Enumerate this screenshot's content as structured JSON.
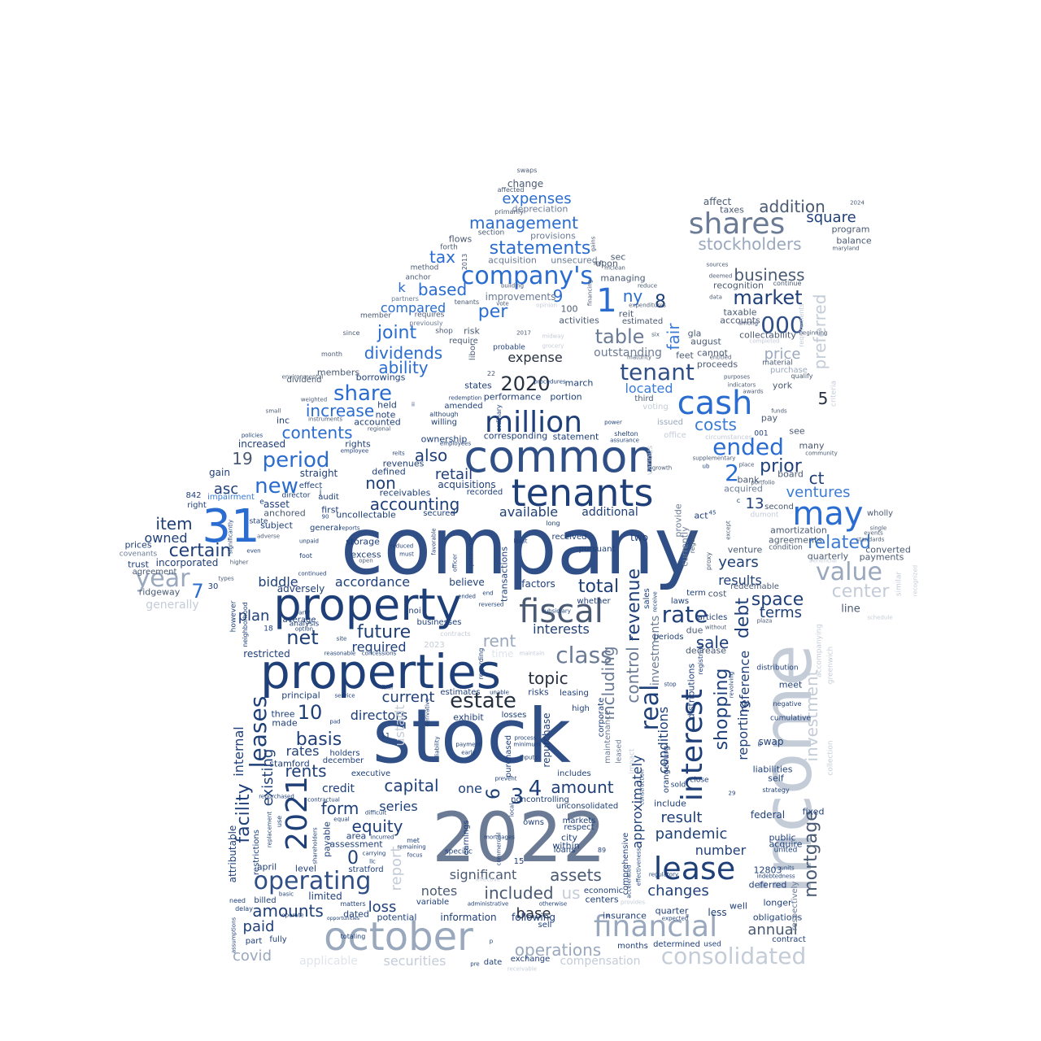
{
  "words": {
    "company": "company",
    "stock": "stock",
    "income": "income",
    "y2022": "2022",
    "properties": "properties",
    "property": "property",
    "common": "common",
    "tenants": "tenants",
    "october": "october",
    "fiscal": "fiscal",
    "financial": "financial",
    "consolidated": "consolidated",
    "n31": "31",
    "may": "may",
    "cash": "cash",
    "million": "million",
    "shares": "shares",
    "companys": "company's",
    "lease": "lease",
    "operating": "operating",
    "n2021": "2021",
    "interest": "interest",
    "real": "real",
    "value": "value",
    "tenant": "tenant",
    "ended": "ended",
    "estate": "estate",
    "class": "class",
    "year": "year",
    "statements": "statements",
    "management": "management",
    "expenses": "expenses",
    "stockholders": "stockholders",
    "addition": "addition",
    "market": "market",
    "n000": "000",
    "business": "business",
    "share": "share",
    "n2020": "2020",
    "increase": "increase",
    "contents": "contents",
    "period": "period",
    "new": "new",
    "also": "also",
    "accounting": "accounting",
    "leases": "leases",
    "dividends": "dividends",
    "joint": "joint",
    "ability": "ability",
    "table": "table",
    "rate": "rate",
    "debt": "debt",
    "future": "future",
    "net": "net",
    "total": "total",
    "revenue": "revenue",
    "shopping": "shopping",
    "investment": "investment",
    "mortgage": "mortgage",
    "preferred": "preferred",
    "center": "center",
    "related": "related",
    "ventures": "ventures",
    "prior": "prior",
    "ct": "ct",
    "costs": "costs",
    "located": "located",
    "fair": "fair",
    "capital": "capital",
    "equity": "equity",
    "form": "form",
    "rents": "rents",
    "basis": "basis",
    "amount": "amount",
    "assets": "assets",
    "included": "included",
    "operations": "operations",
    "significant": "significant",
    "topic": "topic",
    "current": "current",
    "directors": "directors",
    "certain": "certain",
    "item": "item",
    "asc": "asc",
    "available": "available",
    "retail": "retail",
    "non": "non",
    "changes": "changes",
    "pandemic": "pandemic",
    "result": "result",
    "number": "number",
    "sale": "sale",
    "space": "space",
    "results": "results",
    "terms": "terms",
    "years": "years",
    "annual": "annual",
    "amounts": "amounts",
    "paid": "paid",
    "covid": "covid",
    "loss": "loss",
    "notes": "notes",
    "base": "base",
    "facility": "facility",
    "existing": "existing",
    "internal": "internal",
    "required": "required",
    "accordance": "accordance",
    "biddle": "biddle",
    "plan": "plan",
    "rent": "rent",
    "n1": "1",
    "n4": "4",
    "n3": "3",
    "n6": "6",
    "n7": "7",
    "n10": "10",
    "n19": "19",
    "n0": "0",
    "n2": "2",
    "n5": "5",
    "n8": "8",
    "n9": "9",
    "n13": "13",
    "ny": "ny",
    "per": "per",
    "based": "based",
    "tax": "tax",
    "compared": "compared",
    "k": "k",
    "price": "price",
    "square": "square",
    "outstanding": "outstanding",
    "expense": "expense",
    "including": "including",
    "control": "control",
    "conditions": "conditions",
    "investments": "investments",
    "approximately": "approximately",
    "reporting": "reporting",
    "reference": "reference",
    "report": "report",
    "us": "us",
    "securities": "securities",
    "applicable": "applicable",
    "compensation": "compensation",
    "one": "one",
    "credit": "credit",
    "series": "series",
    "owned": "owned",
    "generally": "generally",
    "incorporated": "incorporated",
    "adversely": "adversely",
    "change": "change",
    "depreciation": "depreciation",
    "provisions": "provisions",
    "acquisition": "acquisition",
    "unsecured": "unsecured",
    "improvements": "improvements",
    "activities": "activities",
    "upon": "upon",
    "sec": "sec",
    "managing": "managing",
    "reit": "reit",
    "estimated": "estimated",
    "affect": "affect",
    "taxes": "taxes",
    "program": "program",
    "balance": "balance",
    "recognition": "recognition",
    "taxable": "taxable",
    "accounts": "accounts",
    "collectability": "collectability",
    "gla": "gla",
    "august": "august",
    "feet": "feet",
    "cannot": "cannot",
    "proceeds": "proceeds",
    "purchase": "purchase",
    "york": "york",
    "pay": "pay",
    "see": "see",
    "many": "many",
    "board": "board",
    "bank": "bank",
    "acquired": "acquired",
    "second": "second",
    "amortization": "amortization",
    "agreements": "agreements",
    "quarterly": "quarterly",
    "payments": "payments",
    "converted": "converted",
    "wholly": "wholly",
    "line": "line",
    "similar": "similar",
    "venture": "venture",
    "redeemable": "redeemable",
    "cost": "cost",
    "due": "due",
    "decrease": "decrease",
    "ownership": "ownership",
    "statement": "statement",
    "corresponding": "corresponding",
    "performance": "performance",
    "portion": "portion",
    "march": "march",
    "states": "states",
    "amended": "amended",
    "willing": "willing",
    "borrowings": "borrowings",
    "members": "members",
    "dividend": "dividend",
    "held": "held",
    "note": "note",
    "accounted": "accounted",
    "inc": "inc",
    "increased": "increased",
    "rights": "rights",
    "gain": "gain",
    "straight": "straight",
    "effect": "effect",
    "impairment": "impairment",
    "asset": "asset",
    "anchored": "anchored",
    "subject": "subject",
    "trust": "trust",
    "agreement": "agreement",
    "ridgeway": "ridgeway",
    "prices": "prices",
    "covenants": "covenants",
    "revenues": "revenues",
    "defined": "defined",
    "receivables": "receivables",
    "acquisitions": "acquisitions",
    "recorded": "recorded",
    "secured": "secured",
    "uncollectable": "uncollectable",
    "storage": "storage",
    "excess": "excess",
    "received": "received",
    "pursuant": "pursuant",
    "two": "two",
    "factors": "factors",
    "believe": "believe",
    "transactions": "transactions",
    "interests": "interests",
    "whether": "whether",
    "additional": "additional",
    "provide": "provide",
    "currently": "currently",
    "act": "act",
    "laws": "laws",
    "term": "term",
    "sales": "sales",
    "periods": "periods",
    "articles": "articles",
    "adjustment": "adjustment",
    "estimates": "estimates",
    "exhibit": "exhibit",
    "losses": "losses",
    "risks": "risks",
    "leasing": "leasing",
    "repurchase": "repurchase",
    "purchased": "purchased",
    "noncontrolling": "noncontrolling",
    "includes": "includes",
    "unconsolidated": "unconsolidated",
    "high": "high",
    "corporate": "corporate",
    "maintenance": "maintenance",
    "insurance": "insurance",
    "centers": "centers",
    "economic": "economic",
    "comprehensive": "comprehensive",
    "information": "information",
    "following": "following",
    "sell": "sell",
    "exchange": "exchange",
    "date": "date",
    "months": "months",
    "determined": "determined",
    "used": "used",
    "quarter": "quarter",
    "less": "less",
    "well": "well",
    "obligations": "obligations",
    "contract": "contract",
    "longer": "longer",
    "deferred": "deferred",
    "n12803": "12803",
    "public": "public",
    "acquire": "acquire",
    "united": "united",
    "federal": "federal",
    "fixed": "fixed",
    "liabilities": "liabilities",
    "self": "self",
    "strategy": "strategy",
    "swap": "swap",
    "meet": "meet",
    "distribution": "distribution",
    "cumulative": "cumulative",
    "negative": "negative",
    "include": "include",
    "distributions": "distributions",
    "orangeburg": "orangeburg",
    "sold": "sold",
    "close": "close",
    "holders": "holders",
    "december": "december",
    "rates": "rates",
    "stamford": "stamford",
    "executive": "executive",
    "three": "three",
    "made": "made",
    "principal": "principal",
    "ustadt": "ustadt",
    "markets": "markets",
    "respect": "respect",
    "city": "city",
    "within": "within",
    "loans": "loans",
    "owns": "owns",
    "earnings": "earnings",
    "specific": "specific",
    "level": "level",
    "april": "april",
    "stratford": "stratford",
    "payable": "payable",
    "restrictions": "restrictions",
    "area": "area",
    "assessment": "assessment",
    "attributable": "attributable",
    "limited": "limited",
    "dated": "dated",
    "potential": "potential",
    "variable": "variable",
    "billed": "billed",
    "fully": "fully",
    "part": "part",
    "totaling": "totaling",
    "matters": "matters",
    "need": "need",
    "delay": "delay",
    "restricted": "restricted",
    "average": "average",
    "however": "however",
    "analysis": "analysis",
    "neighborhood": "neighborhood",
    "swaps": "swaps",
    "affected": "affected",
    "primarily": "primarily",
    "section": "section",
    "flows": "flows",
    "forth": "forth",
    "method": "method",
    "anchor": "anchor",
    "partners": "partners",
    "requires": "requires",
    "previously": "previously",
    "member": "member",
    "shop": "shop",
    "risk": "risk",
    "require": "require",
    "since": "since",
    "month": "month",
    "audit": "audit",
    "first": "first",
    "general": "general",
    "state": "state",
    "director": "director",
    "right": "right",
    "n842": "842",
    "n30": "30",
    "n100": "100",
    "n2013": "2013",
    "n2017": "2017",
    "n2023": "2023",
    "n2024": "2024",
    "n22": "22",
    "n15": "15",
    "n18": "18",
    "n11": "11",
    "n90": "90",
    "n89": "89",
    "n29": "29",
    "n45": "45",
    "n001": "001",
    "maryland": "maryland",
    "sources": "sources",
    "deemed": "deemed",
    "reduce": "reduce",
    "continue": "continue",
    "data": "data",
    "among": "among",
    "completed": "completed",
    "entitled": "entitled",
    "material": "material",
    "qualify": "qualify",
    "purposes": "purposes",
    "third": "third",
    "voting": "voting",
    "funds": "funds",
    "issued": "issued",
    "office": "office",
    "circumstances": "circumstances",
    "community": "community",
    "growth": "growth",
    "portfolio": "portfolio",
    "place": "place",
    "dumont": "dumont",
    "condition": "condition",
    "beneficial": "beneficial",
    "regular": "regular",
    "except": "except",
    "proxy": "proxy",
    "plaza": "plaza",
    "without": "without",
    "greenwich": "greenwich",
    "accompanying": "accompanying",
    "collection": "collection",
    "criteria": "criteria",
    "registrant": "registrant",
    "revolving": "revolving",
    "stop": "stop",
    "receive": "receive",
    "impact": "impact",
    "leased": "leased",
    "construction": "construction",
    "provides": "provides",
    "expected": "expected",
    "regulatory": "regulatory",
    "accelerated": "accelerated",
    "effectiveness": "effectiveness",
    "units": "units",
    "indebtedness": "indebtedness",
    "mclean": "mclean",
    "financing": "financing",
    "expenditures": "expenditures",
    "maturity": "maturity",
    "six": "six",
    "building": "building",
    "vote": "vote",
    "opinion": "opinion",
    "tenants2": "tenants",
    "procedures": "procedures",
    "probable": "probable",
    "redemption": "redemption",
    "although": "although",
    "ordinary": "ordinary",
    "employees": "employees",
    "power": "power",
    "shelton": "shelton",
    "assurance": "assurance",
    "officer": "officer",
    "supermarket": "supermarket",
    "favorable": "favorable",
    "reversed": "reversed",
    "contracts": "contracts",
    "time": "time",
    "regarding": "regarding",
    "reasonable": "reasonable",
    "concessions": "concessions",
    "site": "site",
    "reduced": "reduced",
    "must": "must",
    "unpaid": "unpaid",
    "foot": "foot",
    "continued": "continued",
    "higher": "higher",
    "even": "even",
    "types": "types",
    "party": "party",
    "option": "option",
    "noi": "noi",
    "businesses": "businesses",
    "reports": "reports",
    "least": "least",
    "long": "long",
    "recognized": "recognized",
    "events": "events",
    "standards": "standards",
    "single": "single",
    "schedule": "schedule",
    "firm": "firm",
    "unable": "unable",
    "service": "service",
    "pad": "pad",
    "derivative": "derivative",
    "liability": "liability",
    "payment": "payment",
    "early": "early",
    "process": "process",
    "minimum": "minimum",
    "inputs": "inputs",
    "prevent": "prevent",
    "local": "local",
    "commercial": "commercial",
    "mortgages": "mortgages",
    "focus": "focus",
    "remaining": "remaining",
    "carrying": "carrying",
    "llc": "llc",
    "equal": "equal",
    "difficult": "difficult",
    "incurred": "incurred",
    "met": "met",
    "contractual": "contractual",
    "repurchased": "repurchased",
    "replacement": "replacement",
    "use": "use",
    "shareholders": "shareholders",
    "basic": "basic",
    "opportunities": "opportunities",
    "administrative": "administrative",
    "otherwise": "otherwise",
    "affective": "affective",
    "receivable": "receivable",
    "pre": "pre",
    "assumptions": "assumptions",
    "operate": "operate",
    "environmental": "environmental",
    "weighted": "weighted",
    "small": "small",
    "instruments": "instruments",
    "regional": "regional",
    "policies": "policies",
    "employee": "employee",
    "reits": "reits",
    "libor": "libor",
    "significantly": "significantly",
    "adverse": "adverse",
    "open": "open",
    "subsidiary": "subsidiary",
    "gains": "gains",
    "soft": "soft",
    "supplementary": "supplementary",
    "requirements": "requirements",
    "awards": "awards",
    "indicators": "indicators",
    "beginning": "beginning",
    "ii": "ii",
    "j": "j",
    "e": "e",
    "h": "h",
    "c": "c",
    "b": "b",
    "p": "p",
    "ub": "ub",
    "midway": "midway",
    "grocery": "grocery",
    "maintain": "maintain",
    "end": "end",
    "ended2": "ended",
    "respectively": "respectively",
    "various": "various"
  }
}
